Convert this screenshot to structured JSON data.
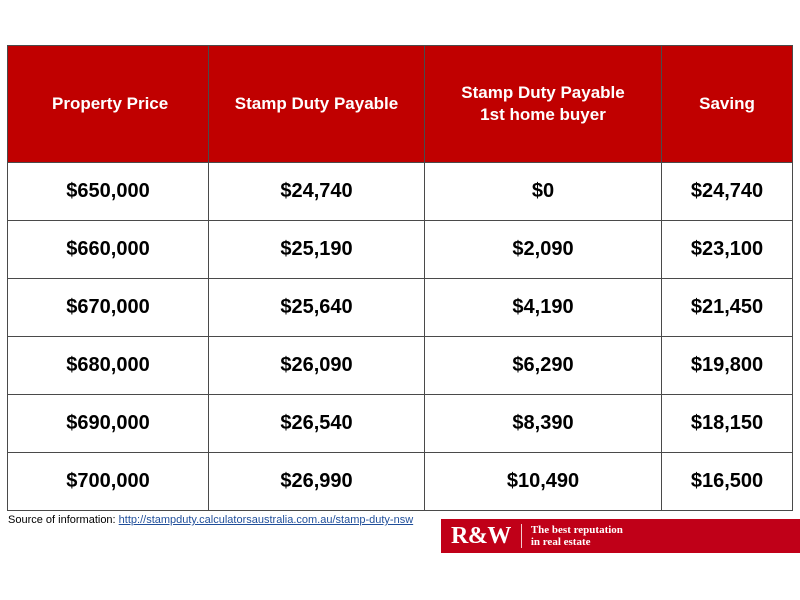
{
  "table": {
    "headers": [
      [
        "Property Price"
      ],
      [
        "Stamp Duty Payable"
      ],
      [
        "Stamp Duty Payable",
        "1st home buyer"
      ],
      [
        "Saving"
      ]
    ],
    "rows": [
      [
        "$650,000",
        "$24,740",
        "$0",
        "$24,740"
      ],
      [
        "$660,000",
        "$25,190",
        "$2,090",
        "$23,100"
      ],
      [
        "$670,000",
        "$25,640",
        "$4,190",
        "$21,450"
      ],
      [
        "$680,000",
        "$26,090",
        "$6,290",
        "$19,800"
      ],
      [
        "$690,000",
        "$26,540",
        "$8,390",
        "$18,150"
      ],
      [
        "$700,000",
        "$26,990",
        "$10,490",
        "$16,500"
      ]
    ]
  },
  "footer": {
    "source_label": "Source of information: ",
    "source_link": "http://stampduty.calculatorsaustralia.com.au/stamp-duty-nsw"
  },
  "brand": {
    "logo": "R&W",
    "tagline_line1": "The best reputation",
    "tagline_line2": "in real estate"
  },
  "colors": {
    "header_bg": "#c00000",
    "brand_bg": "#c00018",
    "link": "#1f4e9a"
  }
}
